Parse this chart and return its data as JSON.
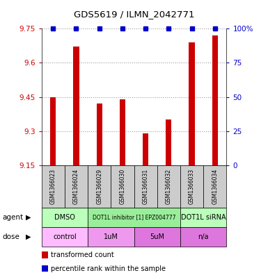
{
  "title": "GDS5619 / ILMN_2042771",
  "samples": [
    "GSM1366023",
    "GSM1366024",
    "GSM1366029",
    "GSM1366030",
    "GSM1366031",
    "GSM1366032",
    "GSM1366033",
    "GSM1366034"
  ],
  "bar_values": [
    9.45,
    9.67,
    9.42,
    9.44,
    9.29,
    9.35,
    9.69,
    9.72
  ],
  "percentile_values": [
    100,
    100,
    100,
    100,
    100,
    100,
    100,
    100
  ],
  "y_min": 9.15,
  "y_max": 9.75,
  "y_ticks": [
    9.15,
    9.3,
    9.45,
    9.6,
    9.75
  ],
  "y2_ticks": [
    0,
    25,
    50,
    75,
    100
  ],
  "y2_tick_labels": [
    "0",
    "25",
    "50",
    "75",
    "100%"
  ],
  "bar_color": "#cc0000",
  "percentile_color": "#0000cc",
  "agent_groups": [
    {
      "text": "DMSO",
      "start": 0,
      "end": 2,
      "color": "#bbffbb"
    },
    {
      "text": "DOT1L inhibitor [1] EPZ004777",
      "start": 2,
      "end": 6,
      "color": "#99ee99"
    },
    {
      "text": "DOT1L siRNA",
      "start": 6,
      "end": 8,
      "color": "#bbffbb"
    }
  ],
  "dose_groups": [
    {
      "text": "control",
      "start": 0,
      "end": 2,
      "color": "#ffbbff"
    },
    {
      "text": "1uM",
      "start": 2,
      "end": 4,
      "color": "#ee99ee"
    },
    {
      "text": "5uM",
      "start": 4,
      "end": 6,
      "color": "#dd77dd"
    },
    {
      "text": "n/a",
      "start": 6,
      "end": 8,
      "color": "#dd77dd"
    }
  ],
  "legend_items": [
    {
      "color": "#cc0000",
      "label": "transformed count"
    },
    {
      "color": "#0000cc",
      "label": "percentile rank within the sample"
    }
  ],
  "sample_box_color": "#cccccc",
  "bar_width": 0.25,
  "figsize": [
    3.85,
    3.93
  ],
  "dpi": 100
}
